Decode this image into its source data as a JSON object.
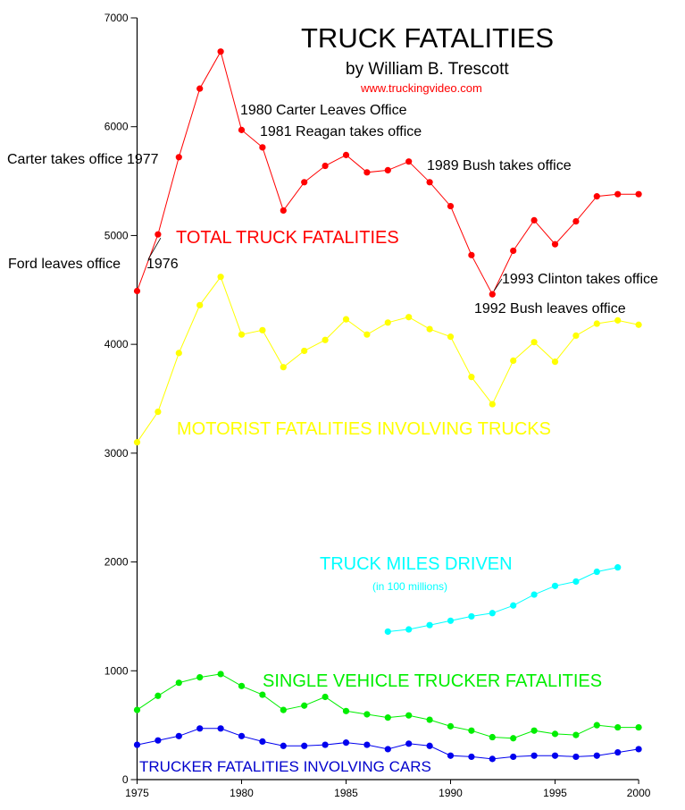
{
  "chart_data": {
    "type": "line",
    "title": "TRUCK FATALITIES",
    "subtitle": "by William B. Trescott",
    "source": "www.truckingvideo.com",
    "xlabel": "",
    "ylabel": "",
    "xlim": [
      1975,
      2000
    ],
    "ylim": [
      0,
      7000
    ],
    "x_ticks": [
      "1975",
      "1980",
      "1985",
      "1990",
      "1995",
      "2000"
    ],
    "y_ticks": [
      "0",
      "1000",
      "2000",
      "3000",
      "4000",
      "5000",
      "6000",
      "7000"
    ],
    "grid": false,
    "series": [
      {
        "name": "TOTAL TRUCK FATALITIES",
        "color": "#ff0000",
        "x": [
          1975,
          1976,
          1977,
          1978,
          1979,
          1980,
          1981,
          1982,
          1983,
          1984,
          1985,
          1986,
          1987,
          1988,
          1989,
          1990,
          1991,
          1992,
          1993,
          1994,
          1995,
          1996,
          1997,
          1998,
          1999
        ],
        "values": [
          4490,
          5010,
          5720,
          6350,
          6690,
          5970,
          5810,
          5230,
          5490,
          5640,
          5740,
          5580,
          5600,
          5680,
          5490,
          5270,
          4820,
          4460,
          4860,
          5140,
          4920,
          5130,
          5360,
          5380,
          5380
        ]
      },
      {
        "name": "MOTORIST FATALITIES INVOLVING TRUCKS",
        "color": "#ffff00",
        "x": [
          1975,
          1976,
          1977,
          1978,
          1979,
          1980,
          1981,
          1982,
          1983,
          1984,
          1985,
          1986,
          1987,
          1988,
          1989,
          1990,
          1991,
          1992,
          1993,
          1994,
          1995,
          1996,
          1997,
          1998,
          1999
        ],
        "values": [
          3100,
          3380,
          3920,
          4360,
          4620,
          4090,
          4130,
          3790,
          3940,
          4040,
          4230,
          4090,
          4200,
          4250,
          4140,
          4070,
          3700,
          3450,
          3850,
          4020,
          3840,
          4080,
          4190,
          4220,
          4180
        ]
      },
      {
        "name": "TRUCK MILES DRIVEN",
        "note": "(in 100 millions)",
        "color": "#00ffff",
        "x": [
          1987,
          1988,
          1989,
          1990,
          1991,
          1992,
          1993,
          1994,
          1995,
          1996,
          1997,
          1998
        ],
        "values": [
          1360,
          1380,
          1420,
          1460,
          1500,
          1530,
          1600,
          1700,
          1780,
          1820,
          1910,
          1950
        ]
      },
      {
        "name": "SINGLE VEHICLE TRUCKER FATALITIES",
        "color": "#00ee00",
        "x": [
          1975,
          1976,
          1977,
          1978,
          1979,
          1980,
          1981,
          1982,
          1983,
          1984,
          1985,
          1986,
          1987,
          1988,
          1989,
          1990,
          1991,
          1992,
          1993,
          1994,
          1995,
          1996,
          1997,
          1998,
          1999
        ],
        "values": [
          640,
          770,
          890,
          940,
          970,
          860,
          780,
          640,
          680,
          760,
          630,
          600,
          570,
          590,
          550,
          490,
          450,
          390,
          380,
          450,
          420,
          410,
          500,
          480,
          480
        ]
      },
      {
        "name": "TRUCKER FATALITIES INVOLVING CARS",
        "color": "#0000ee",
        "x": [
          1975,
          1976,
          1977,
          1978,
          1979,
          1980,
          1981,
          1982,
          1983,
          1984,
          1985,
          1986,
          1987,
          1988,
          1989,
          1990,
          1991,
          1992,
          1993,
          1994,
          1995,
          1996,
          1997,
          1998,
          1999
        ],
        "values": [
          320,
          360,
          400,
          470,
          470,
          400,
          350,
          310,
          310,
          320,
          340,
          320,
          280,
          330,
          310,
          220,
          210,
          190,
          210,
          220,
          220,
          210,
          220,
          250,
          280
        ]
      }
    ],
    "annotations": {
      "carter_takes": "Carter takes office 1977",
      "ford_leaves": "Ford leaves office",
      "ford_year": "1976",
      "carter_leaves": "1980 Carter Leaves Office",
      "reagan_takes": "1981 Reagan takes office",
      "bush_takes": "1989 Bush takes office",
      "clinton_takes": "1993 Clinton takes office",
      "bush_leaves": "1992 Bush leaves office"
    }
  }
}
